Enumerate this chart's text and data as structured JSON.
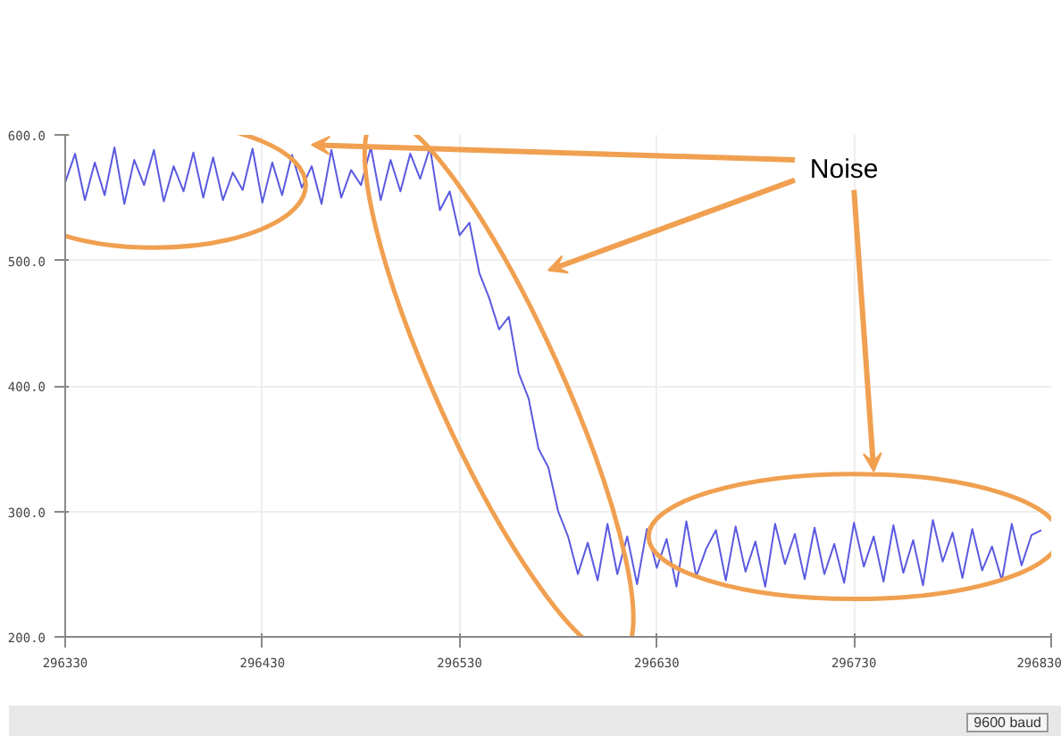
{
  "chart_data": {
    "type": "line",
    "annotations": [
      "Noise",
      "9600 baud"
    ],
    "x": [
      296330,
      296335,
      296340,
      296345,
      296350,
      296355,
      296360,
      296365,
      296370,
      296375,
      296380,
      296385,
      296390,
      296395,
      296400,
      296405,
      296410,
      296415,
      296420,
      296425,
      296430,
      296435,
      296440,
      296445,
      296450,
      296455,
      296460,
      296465,
      296470,
      296475,
      296480,
      296485,
      296490,
      296495,
      296500,
      296505,
      296510,
      296515,
      296520,
      296525,
      296530,
      296535,
      296540,
      296545,
      296550,
      296555,
      296560,
      296565,
      296570,
      296575,
      296580,
      296585,
      296590,
      296595,
      296600,
      296605,
      296610,
      296615,
      296620,
      296625,
      296630,
      296635,
      296640,
      296645,
      296650,
      296655,
      296660,
      296665,
      296670,
      296675,
      296680,
      296685,
      296690,
      296695,
      296700,
      296705,
      296710,
      296715,
      296720,
      296725,
      296730,
      296735,
      296740,
      296745,
      296750,
      296755,
      296760,
      296765,
      296770,
      296775,
      296780,
      296785,
      296790,
      296795,
      296800,
      296805,
      296810,
      296815,
      296820,
      296825
    ],
    "series": [
      {
        "color": "#5a5ae0",
        "values": [
          562,
          585,
          548,
          578,
          552,
          590,
          545,
          580,
          560,
          588,
          547,
          575,
          555,
          586,
          550,
          582,
          548,
          570,
          556,
          589,
          546,
          578,
          552,
          584,
          558,
          575,
          545,
          588,
          550,
          572,
          560,
          590,
          548,
          580,
          555,
          585,
          565,
          590,
          540,
          555,
          520,
          530,
          490,
          470,
          445,
          455,
          410,
          390,
          350,
          335,
          300,
          280,
          250,
          275,
          245,
          290,
          250,
          280,
          242,
          286,
          255,
          278,
          240,
          292,
          248,
          270,
          285,
          245,
          288,
          252,
          276,
          240,
          290,
          258,
          282,
          246,
          287,
          250,
          274,
          243,
          291,
          256,
          280,
          244,
          289,
          251,
          277,
          241,
          293,
          260,
          283,
          247,
          286,
          253,
          272,
          245,
          290,
          257,
          281,
          285
        ]
      }
    ],
    "xlim": [
      296330,
      296830
    ],
    "xticks": [
      296330,
      296430,
      296530,
      296630,
      296730,
      296830
    ],
    "ylim": [
      200,
      600
    ],
    "yticks": [
      {
        "value": 200,
        "label": "200.0"
      },
      {
        "value": 300,
        "label": "300.0"
      },
      {
        "value": 400,
        "label": "400.0"
      },
      {
        "value": 500,
        "label": "500.0"
      },
      {
        "value": 600,
        "label": "600.0"
      }
    ],
    "grid": true
  }
}
